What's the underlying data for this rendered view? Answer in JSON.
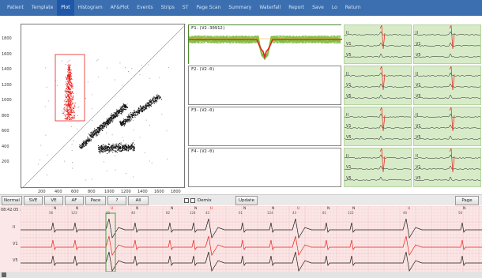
{
  "nav": {
    "items": [
      "Patient",
      "Template",
      "Plot",
      "Histogram",
      "AF&Plot",
      "Events",
      "Strips",
      "ST",
      "Page Scan",
      "Summary",
      "Waterfall",
      "Report",
      "Save",
      "Lo",
      "Return"
    ],
    "active_index": 2
  },
  "scatter": {
    "y_ticks": [
      "1800",
      "1600",
      "1400",
      "1200",
      "1000",
      "800",
      "600",
      "400",
      "200"
    ],
    "x_ticks": [
      "200",
      "400",
      "600",
      "800",
      "1000",
      "1200",
      "1400",
      "1600",
      "1800"
    ],
    "colors": {
      "normal": "#111111",
      "selected": "#e8211b",
      "box": "#e8211b"
    }
  },
  "templates": [
    {
      "label": "F1-(V2-30912)",
      "selected": true
    },
    {
      "label": "F2-(V2-0)",
      "selected": false
    },
    {
      "label": "F3-(V2-0)",
      "selected": false
    },
    {
      "label": "F4-(V2-0)",
      "selected": false
    }
  ],
  "strips": {
    "leads": [
      "II",
      "V1",
      "V5"
    ],
    "cells": [
      {
        "row": 0,
        "col": 0
      },
      {
        "row": 0,
        "col": 1
      },
      {
        "row": 1,
        "col": 0
      },
      {
        "row": 1,
        "col": 1
      },
      {
        "row": 2,
        "col": 0
      },
      {
        "row": 2,
        "col": 1
      },
      {
        "row": 3,
        "col": 0
      },
      {
        "row": 3,
        "col": 1
      }
    ],
    "colors": {
      "bg": "#d7ebc8",
      "trace": "#222222",
      "marker": "#e8211b"
    }
  },
  "toolbar": {
    "buttons": [
      "Normal",
      "SVE",
      "VE",
      "AF",
      "Pace",
      "?",
      "All"
    ],
    "demix_label": "Demix",
    "update_label": "Update",
    "page_label": "Page"
  },
  "ecg": {
    "time": "08:42:05 :01",
    "leads": [
      "II",
      "V1",
      "V5"
    ],
    "beats": [
      {
        "t": "N",
        "rr": "56"
      },
      {
        "t": "N",
        "rr": "122"
      },
      {
        "t": "U",
        "rr": "33"
      },
      {
        "t": "N",
        "rr": "40"
      },
      {
        "t": "N",
        "rr": "82"
      },
      {
        "t": "N",
        "rr": "124"
      },
      {
        "t": "U",
        "rr": "42"
      },
      {
        "t": "N",
        "rr": "61"
      },
      {
        "t": "N",
        "rr": "124"
      },
      {
        "t": "U",
        "rr": "43"
      },
      {
        "t": "N",
        "rr": "81"
      },
      {
        "t": "N",
        "rr": "122"
      },
      {
        "t": "U",
        "rr": "40"
      },
      {
        "t": "N",
        "rr": "56"
      }
    ],
    "colors": {
      "bg": "#fbe7e7",
      "grid": "#f2b9b9",
      "trace": "#1a1a1a",
      "pvc": "#e8211b",
      "cursor": "#3aa33a"
    }
  }
}
